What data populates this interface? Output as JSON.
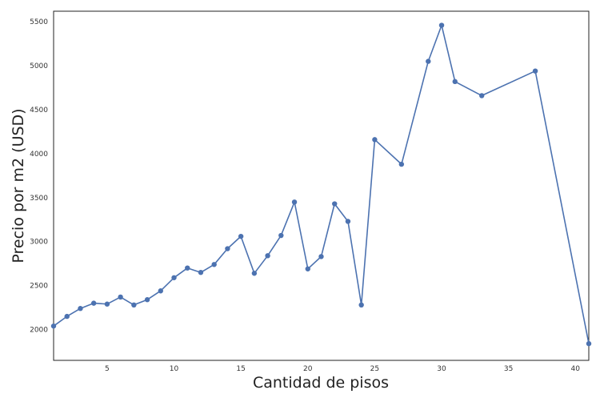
{
  "chart_data": {
    "type": "line",
    "title": "",
    "xlabel": "Cantidad de pisos",
    "ylabel": "Precio por m2 (USD)",
    "xlim": [
      1,
      41
    ],
    "ylim": [
      1650,
      5620
    ],
    "grid": false,
    "legend": "none",
    "x_ticks": [
      5,
      10,
      15,
      20,
      25,
      30,
      35,
      40
    ],
    "y_ticks": [
      2000,
      2500,
      3000,
      3500,
      4000,
      4500,
      5000,
      5500
    ],
    "series": [
      {
        "color": "#4c72b0",
        "marker": "circle",
        "x": [
          1,
          2,
          3,
          4,
          5,
          6,
          7,
          8,
          9,
          10,
          11,
          12,
          13,
          14,
          15,
          16,
          17,
          18,
          19,
          20,
          21,
          22,
          23,
          24,
          25,
          27,
          29,
          30,
          31,
          33,
          37,
          41
        ],
        "y": [
          2040,
          2150,
          2240,
          2300,
          2290,
          2370,
          2280,
          2340,
          2440,
          2590,
          2700,
          2650,
          2740,
          2920,
          3060,
          2640,
          2840,
          3070,
          3450,
          2690,
          2830,
          3430,
          3230,
          2280,
          4160,
          3880,
          5050,
          5460,
          4820,
          4660,
          4940,
          1840
        ]
      }
    ]
  }
}
